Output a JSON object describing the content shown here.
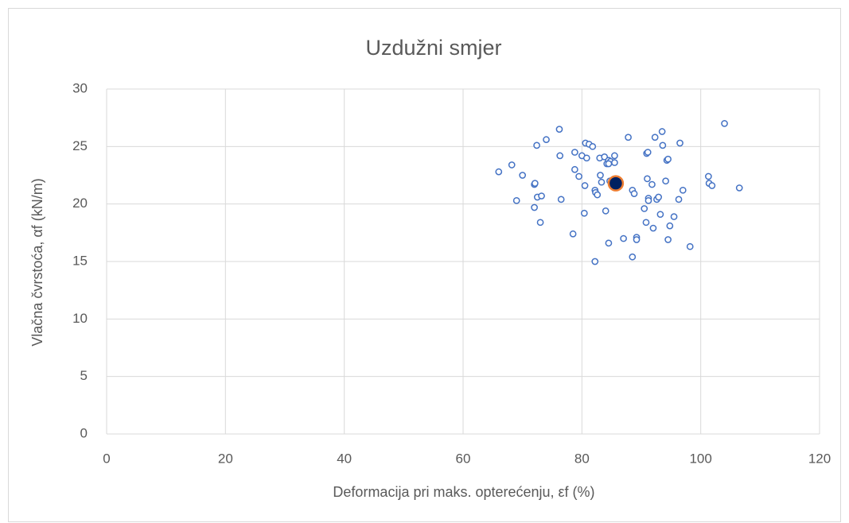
{
  "chart_data": {
    "type": "scatter",
    "title": "Uzdužni smjer",
    "xlabel": "Deformacija pri maks. opterećenju, εf (%)",
    "ylabel": "Vlačna čvrstoća, αf (kN/m)",
    "xlim": [
      0,
      120
    ],
    "xticks": [
      0,
      20,
      40,
      60,
      80,
      100,
      120
    ],
    "ylim": [
      0,
      30
    ],
    "yticks": [
      0,
      5,
      10,
      15,
      20,
      25,
      30
    ],
    "grid": true,
    "series": [
      {
        "color": "#4472c4",
        "x": [
          66,
          68.2,
          70,
          72,
          72.1,
          69,
          72.5,
          73.2,
          72,
          73,
          72.4,
          74,
          76.2,
          76.3,
          76.5,
          78.5,
          78.8,
          78.8,
          79.5,
          80,
          80.6,
          81.2,
          81.8,
          80.8,
          80.5,
          80.4,
          82.2,
          82.3,
          82.6,
          82.2,
          83.1,
          83.3,
          83,
          83.8,
          84.2,
          84.5,
          84.8,
          85.5,
          85.5,
          84.7,
          84,
          84.5,
          85.5,
          86,
          87,
          87.8,
          88.5,
          88.5,
          88.8,
          89.2,
          89.2,
          90.5,
          90.8,
          90.9,
          91.1,
          91,
          91.2,
          91.2,
          91.8,
          92,
          92.3,
          92.6,
          92.9,
          93.2,
          93.5,
          93.6,
          94.1,
          94.3,
          94.5,
          94.5,
          94.8,
          95.5,
          96.3,
          96.5,
          97,
          98.2,
          101.3,
          101.4,
          101.9,
          104,
          106.5,
          84.5
        ],
        "y": [
          22.8,
          23.4,
          22.5,
          21.7,
          21.8,
          20.3,
          20.6,
          20.7,
          19.7,
          18.4,
          25.1,
          25.6,
          26.5,
          24.2,
          20.4,
          17.4,
          24.5,
          23,
          22.4,
          24.2,
          25.3,
          25.2,
          25,
          24,
          21.6,
          19.2,
          21.2,
          21,
          20.8,
          15,
          22.5,
          21.9,
          24,
          24.1,
          23.5,
          23.8,
          23.7,
          24.2,
          23.6,
          22,
          19.4,
          16.6,
          22.1,
          22,
          17,
          25.8,
          15.4,
          21.2,
          20.9,
          17.1,
          16.9,
          19.6,
          18.4,
          24.4,
          24.5,
          22.2,
          20.5,
          20.3,
          21.7,
          17.9,
          25.8,
          20.4,
          20.6,
          19.1,
          26.3,
          25.1,
          22,
          23.8,
          23.9,
          16.9,
          18.1,
          18.9,
          20.4,
          25.3,
          21.2,
          16.3,
          22.4,
          21.8,
          21.6,
          27,
          21.4,
          23.5
        ]
      },
      {
        "color": "#002060",
        "edgecolor": "#ed7d31",
        "x": [
          85.7
        ],
        "y": [
          21.8
        ]
      }
    ]
  }
}
